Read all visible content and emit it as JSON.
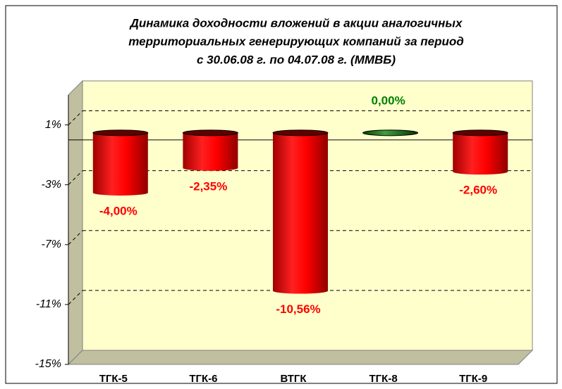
{
  "chart_data": {
    "type": "bar",
    "title": [
      "Динамика доходности вложений в акции аналогичных",
      "территориальных генерирующих компаний за период",
      "с 30.06.08 г. по 04.07.08 г. (ММВБ)"
    ],
    "categories": [
      "ТГК-5",
      "ТГК-6",
      "ВТГК",
      "ТГК-8",
      "ТГК-9"
    ],
    "values": [
      -4.0,
      -2.35,
      -10.56,
      0.0,
      -2.6
    ],
    "value_labels": [
      "-4,00%",
      "-2,35%",
      "-10,56%",
      "0,00%",
      "-2,60%"
    ],
    "colors": [
      "#ff0000",
      "#ff0000",
      "#ff0000",
      "#008000",
      "#ff0000"
    ],
    "ylim": [
      -15,
      3
    ],
    "yticks": [
      {
        "value": 1,
        "label": "1%"
      },
      {
        "value": -3,
        "label": "-3%"
      },
      {
        "value": -7,
        "label": "-7%"
      },
      {
        "value": -11,
        "label": "-11%"
      },
      {
        "value": -15,
        "label": "-15%"
      }
    ],
    "grid": true
  }
}
